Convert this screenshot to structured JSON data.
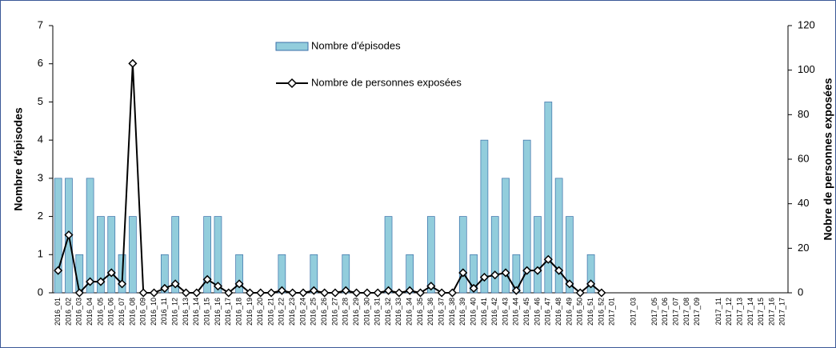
{
  "chart_data": {
    "type": "bar",
    "categories": [
      "2016_01",
      "2016_02",
      "2016_03",
      "2016_04",
      "2016_05",
      "2016_06",
      "2016_07",
      "2016_08",
      "2016_09",
      "2016_10",
      "2016_11",
      "2016_12",
      "2016_13",
      "2016_14",
      "2016_15",
      "2016_16",
      "2016_17",
      "2016_18",
      "2016_19",
      "2016_20",
      "2016_21",
      "2016_22",
      "2016_23",
      "2016_24",
      "2016_25",
      "2016_26",
      "2016_27",
      "2016_28",
      "2016_29",
      "2016_30",
      "2016_31",
      "2016_32",
      "2016_33",
      "2016_34",
      "2016_35",
      "2016_36",
      "2016_37",
      "2016_38",
      "2016_39",
      "2016_40",
      "2016_41",
      "2016_42",
      "2016_43",
      "2016_44",
      "2016_45",
      "2016_46",
      "2016_47",
      "2016_48",
      "2016_49",
      "2016_50",
      "2016_51",
      "2016_52",
      "2017_01",
      null,
      "2017_03",
      null,
      "2017_05",
      "2017_06",
      "2017_07",
      "2017_08",
      "2017_09",
      null,
      "2017_11",
      "2017_12",
      "2017_13",
      "2017_14",
      "2017_15",
      "2017_16",
      "2017_17"
    ],
    "series": [
      {
        "name": "Nombre d'épisodes",
        "type": "bar",
        "axis": "y",
        "color": "#92cddc",
        "values": [
          3,
          3,
          1,
          3,
          2,
          2,
          1,
          2,
          0,
          0,
          1,
          2,
          0,
          0,
          2,
          2,
          0,
          1,
          0,
          0,
          0,
          1,
          0,
          0,
          1,
          0,
          0,
          1,
          0,
          0,
          0,
          2,
          0,
          1,
          0,
          2,
          0,
          0,
          2,
          1,
          4,
          2,
          3,
          1,
          4,
          2,
          5,
          3,
          2,
          0,
          1,
          0,
          null,
          null,
          null,
          null,
          null,
          null,
          null,
          null,
          null,
          null,
          null,
          null,
          null,
          null,
          null,
          null,
          null
        ]
      },
      {
        "name": "Nombre de personnes exposées",
        "type": "line",
        "axis": "y2",
        "color": "#000000",
        "values": [
          10,
          26,
          0,
          5,
          5,
          9,
          4,
          103,
          0,
          0,
          2,
          4,
          0,
          0,
          6,
          3,
          0,
          4,
          0,
          0,
          0,
          1,
          0,
          0,
          1,
          0,
          0,
          1,
          0,
          0,
          0,
          1,
          0,
          1,
          0,
          3,
          0,
          0,
          9,
          2,
          7,
          8,
          9,
          1,
          10,
          10,
          15,
          10,
          4,
          0,
          4,
          0,
          null,
          null,
          null,
          null,
          null,
          null,
          null,
          null,
          null,
          null,
          null,
          null,
          null,
          null,
          null,
          null,
          null
        ]
      }
    ],
    "y_label": "Nombre d'épisodes",
    "y2_label": "Nobre de personnes exposées",
    "ylim": [
      0,
      7
    ],
    "yticks": [
      0,
      1,
      2,
      3,
      4,
      5,
      6,
      7
    ],
    "y2lim": [
      0,
      120
    ],
    "y2ticks": [
      0,
      20,
      40,
      60,
      80,
      100,
      120
    ]
  }
}
